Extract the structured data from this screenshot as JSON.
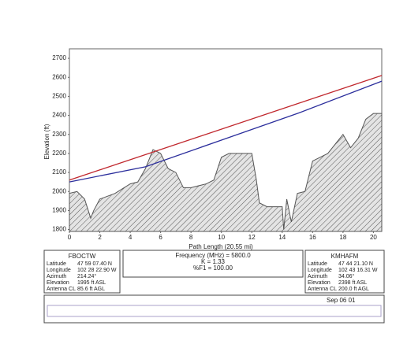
{
  "chart_data": {
    "type": "line",
    "ylabel": "Elevation (ft)",
    "xlabel": "Path Length (20.55 mi)",
    "xlim": [
      0,
      20.55
    ],
    "xticks": [
      0,
      2,
      4,
      6,
      8,
      10,
      12,
      14,
      16,
      18,
      20
    ],
    "ylim": [
      1790,
      2750
    ],
    "yticks": [
      1800,
      1900,
      2000,
      2100,
      2200,
      2300,
      2400,
      2500,
      2600,
      2700
    ],
    "grid": false,
    "series": [
      {
        "color": "#555555",
        "fill": true,
        "x": [
          0,
          0.5,
          1,
          1.4,
          1.6,
          2,
          3,
          4,
          4.5,
          5,
          5.5,
          6,
          6.5,
          7,
          7.5,
          8,
          9,
          9.5,
          10,
          10.5,
          12,
          12.3,
          12.5,
          13,
          13.5,
          14,
          14.1,
          14.3,
          14.6,
          15,
          15.5,
          16,
          17,
          17.5,
          18,
          18.5,
          19,
          19.5,
          20,
          20.55
        ],
        "values": [
          1990,
          2000,
          1960,
          1860,
          1900,
          1960,
          1990,
          2040,
          2050,
          2120,
          2220,
          2200,
          2120,
          2100,
          2020,
          2020,
          2040,
          2060,
          2180,
          2200,
          2200,
          2060,
          1940,
          1920,
          1920,
          1920,
          1800,
          1960,
          1840,
          1990,
          2000,
          2160,
          2200,
          2250,
          2300,
          2230,
          2280,
          2380,
          2410,
          2410
        ]
      },
      {
        "color": "#c0272d",
        "x": [
          0,
          20.55
        ],
        "values": [
          2060,
          2610
        ]
      },
      {
        "color": "#2b2e9c",
        "x": [
          0,
          5,
          10,
          15,
          20.55
        ],
        "values": [
          2050,
          2130,
          2270,
          2410,
          2580
        ]
      }
    ]
  },
  "sites": [
    {
      "name": "FBOCTW",
      "rows": [
        [
          "Latitude",
          "47 59 07.40 N"
        ],
        [
          "Longitude",
          "102 28 22.90 W"
        ],
        [
          "Azimuth",
          "214.24°"
        ],
        [
          "Elevation",
          "1995 ft ASL"
        ],
        [
          "Antenna CL",
          "85.6 ft AGL"
        ]
      ]
    },
    {
      "name": "KMHAFM",
      "rows": [
        [
          "Latitude",
          "47 44 21.10 N"
        ],
        [
          "Longitude",
          "102 43 16.31 W"
        ],
        [
          "Azimuth",
          "34.06°"
        ],
        [
          "Elevation",
          "2398 ft ASL"
        ],
        [
          "Antenna CL",
          "200.0 ft AGL"
        ]
      ]
    }
  ],
  "radio": {
    "lines": [
      "Frequency (MHz) = 5800.0",
      "K = 1.33",
      "%F1 = 100.00"
    ]
  },
  "footer": {
    "date": "Sep 06 01"
  }
}
